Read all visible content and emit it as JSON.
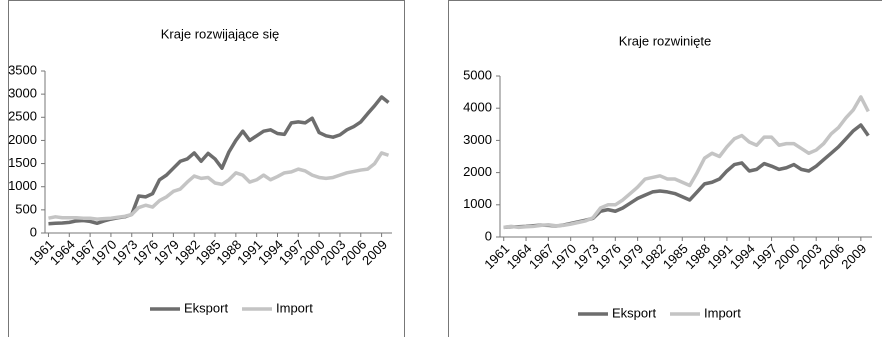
{
  "chart_data": [
    {
      "type": "line",
      "title": "Kraje rozwijające się",
      "categories": [
        "1961",
        null,
        null,
        "1964",
        null,
        null,
        "1967",
        null,
        null,
        "1970",
        null,
        null,
        "1973",
        null,
        null,
        "1976",
        null,
        null,
        "1979",
        null,
        null,
        "1982",
        null,
        null,
        "1985",
        null,
        null,
        "1988",
        null,
        null,
        "1991",
        null,
        null,
        "1994",
        null,
        null,
        "1997",
        null,
        null,
        "2000",
        null,
        null,
        "2003",
        null,
        null,
        "2006",
        null,
        null,
        "2009",
        null
      ],
      "series": [
        {
          "name": "Eksport",
          "color": "#6d6d6d",
          "values": [
            200,
            210,
            215,
            230,
            260,
            270,
            250,
            210,
            260,
            300,
            330,
            350,
            400,
            800,
            780,
            850,
            1150,
            1250,
            1400,
            1550,
            1600,
            1730,
            1550,
            1720,
            1600,
            1400,
            1750,
            2000,
            2200,
            2000,
            2100,
            2200,
            2230,
            2150,
            2130,
            2380,
            2400,
            2380,
            2480,
            2170,
            2100,
            2070,
            2120,
            2230,
            2300,
            2400,
            2580,
            2750,
            2940,
            2820
          ]
        },
        {
          "name": "Import",
          "color": "#c4c4c4",
          "values": [
            320,
            350,
            330,
            330,
            330,
            320,
            320,
            300,
            310,
            320,
            340,
            360,
            400,
            550,
            600,
            560,
            700,
            780,
            900,
            950,
            1100,
            1230,
            1180,
            1200,
            1080,
            1050,
            1150,
            1300,
            1250,
            1100,
            1150,
            1250,
            1150,
            1220,
            1300,
            1320,
            1380,
            1340,
            1250,
            1200,
            1180,
            1200,
            1250,
            1300,
            1330,
            1360,
            1380,
            1500,
            1730,
            1680
          ]
        }
      ],
      "ylim": [
        0,
        3500
      ],
      "yticks": [
        0,
        500,
        1000,
        1500,
        2000,
        2500,
        3000,
        3500
      ],
      "legend": "bottom"
    },
    {
      "type": "line",
      "title": "Kraje rozwinięte",
      "categories": [
        "1961",
        null,
        null,
        "1964",
        null,
        null,
        "1967",
        null,
        null,
        "1970",
        null,
        null,
        "1973",
        null,
        null,
        "1976",
        null,
        null,
        "1979",
        null,
        null,
        "1982",
        null,
        null,
        "1985",
        null,
        null,
        "1988",
        null,
        null,
        "1991",
        null,
        null,
        "1994",
        null,
        null,
        "1997",
        null,
        null,
        "2000",
        null,
        null,
        "2003",
        null,
        null,
        "2006",
        null,
        null,
        "2009",
        null
      ],
      "series": [
        {
          "name": "Eksport",
          "color": "#6d6d6d",
          "values": [
            300,
            320,
            320,
            330,
            350,
            370,
            360,
            340,
            370,
            420,
            470,
            520,
            580,
            800,
            850,
            800,
            900,
            1050,
            1200,
            1300,
            1400,
            1430,
            1400,
            1350,
            1250,
            1150,
            1400,
            1650,
            1700,
            1800,
            2050,
            2250,
            2300,
            2050,
            2100,
            2280,
            2200,
            2100,
            2150,
            2250,
            2100,
            2050,
            2200,
            2400,
            2600,
            2800,
            3050,
            3300,
            3480,
            3150
          ]
        },
        {
          "name": "Import",
          "color": "#c4c4c4",
          "values": [
            300,
            330,
            300,
            320,
            330,
            360,
            380,
            350,
            360,
            400,
            450,
            500,
            600,
            900,
            1000,
            1000,
            1150,
            1350,
            1550,
            1800,
            1850,
            1900,
            1800,
            1800,
            1700,
            1600,
            2000,
            2450,
            2600,
            2500,
            2800,
            3050,
            3150,
            2950,
            2850,
            3100,
            3100,
            2850,
            2900,
            2900,
            2750,
            2600,
            2700,
            2900,
            3200,
            3400,
            3700,
            3950,
            4350,
            3900
          ]
        }
      ],
      "ylim": [
        0,
        5000
      ],
      "yticks": [
        0,
        1000,
        2000,
        3000,
        4000,
        5000
      ],
      "legend": "bottom"
    }
  ]
}
